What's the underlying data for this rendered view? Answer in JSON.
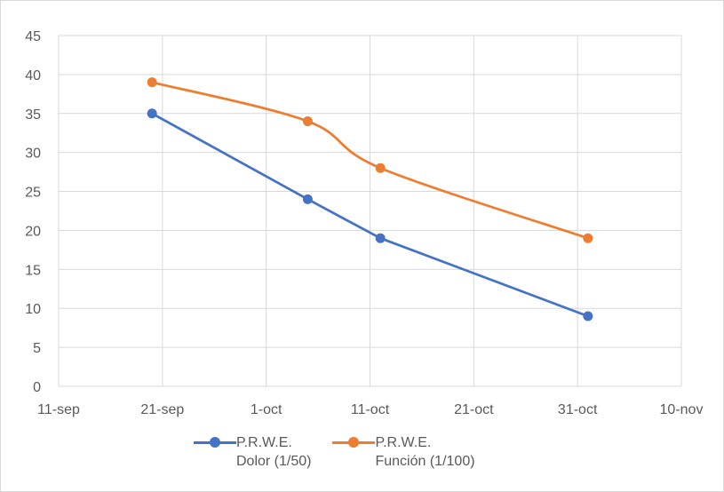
{
  "colors": {
    "dolor": "#4472C4",
    "funcion": "#ED7D31",
    "grid": "#d9d9d9",
    "text": "#595959"
  },
  "chart_data": {
    "type": "line",
    "title": "",
    "xlabel": "",
    "ylabel": "",
    "x_axis_type": "date",
    "xlim": [
      "2020-09-11",
      "2020-11-10"
    ],
    "x_tick_values": [
      "2020-09-11",
      "2020-09-21",
      "2020-10-01",
      "2020-10-11",
      "2020-10-21",
      "2020-10-31",
      "2020-11-10"
    ],
    "x_tick_labels": [
      "11-sep",
      "21-sep",
      "1-oct",
      "11-oct",
      "21-oct",
      "31-oct",
      "10-nov"
    ],
    "ylim": [
      0,
      45
    ],
    "y_ticks": [
      "0",
      "5",
      "10",
      "15",
      "20",
      "25",
      "30",
      "35",
      "40",
      "45"
    ],
    "grid": true,
    "legend_position": "bottom",
    "series": [
      {
        "name": "P.R.W.E. Dolor (1/50)",
        "legend_lines": [
          "P.R.W.E.",
          "Dolor (1/50)"
        ],
        "color": "#4472C4",
        "smooth": false,
        "x": [
          "2020-09-20",
          "2020-10-05",
          "2020-10-12",
          "2020-11-01"
        ],
        "y": [
          35,
          24,
          19,
          9
        ]
      },
      {
        "name": "P.R.W.E. Función (1/100)",
        "legend_lines": [
          "P.R.W.E.",
          "Función (1/100)"
        ],
        "color": "#ED7D31",
        "smooth": true,
        "x": [
          "2020-09-20",
          "2020-10-05",
          "2020-10-12",
          "2020-11-01"
        ],
        "y": [
          39,
          34,
          28,
          19
        ]
      }
    ]
  }
}
